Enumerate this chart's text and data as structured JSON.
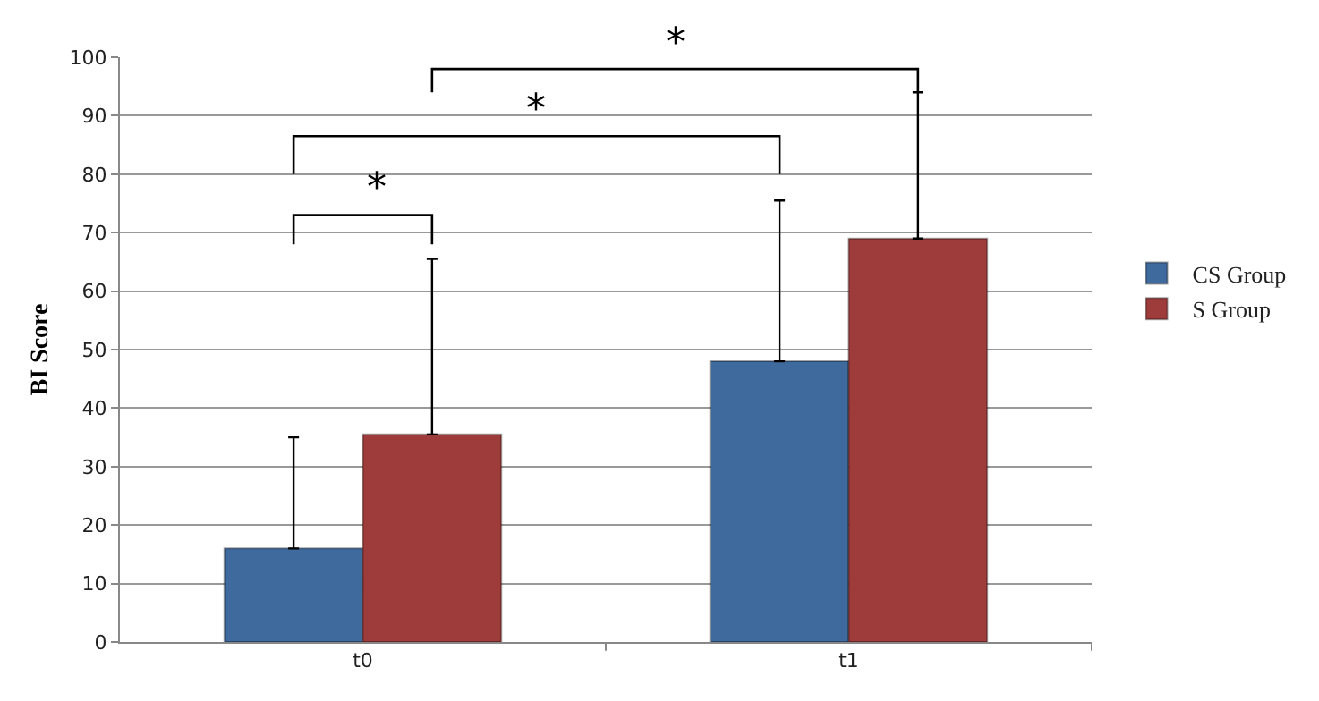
{
  "chart_data": {
    "type": "bar",
    "ylabel": "BI Score",
    "categories": [
      "t0",
      "t1"
    ],
    "series": [
      {
        "name": "CS Group",
        "color": "#3f6a9e",
        "values": [
          16,
          48
        ],
        "errors": [
          [
            16,
            35
          ],
          [
            48,
            75.5
          ]
        ]
      },
      {
        "name": "S Group",
        "color": "#9e3b3b",
        "values": [
          35.5,
          69
        ],
        "errors": [
          [
            35.5,
            65.5
          ],
          [
            69,
            94
          ]
        ]
      }
    ],
    "ylim": [
      0,
      100
    ],
    "yticks": [
      0,
      10,
      20,
      30,
      40,
      50,
      60,
      70,
      80,
      90,
      100
    ],
    "grid": "y",
    "legend": "right",
    "annotations": [
      "*",
      "*",
      "*"
    ]
  }
}
